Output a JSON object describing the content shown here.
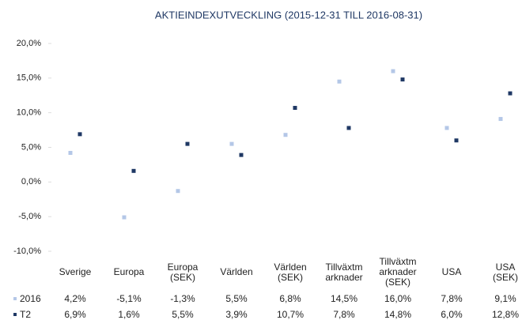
{
  "chart_data": {
    "type": "bar",
    "title": "AKTIEINDEXUTVECKLING  (2015-12-31  TILL  2016-08-31)",
    "categories": [
      "Sverige",
      "Europa",
      "Europa\n(SEK)",
      "Världen",
      "Världen\n(SEK)",
      "Tillväxtm\narknader",
      "Tillväxtm\narknader\n(SEK)",
      "USA",
      "USA\n(SEK)"
    ],
    "series": [
      {
        "name": "2016",
        "color": "#b4c7e7",
        "values": [
          4.2,
          -5.1,
          -1.3,
          5.5,
          6.8,
          14.5,
          16.0,
          7.8,
          9.1
        ],
        "value_labels": [
          "4,2%",
          "-5,1%",
          "-1,3%",
          "5,5%",
          "6,8%",
          "14,5%",
          "16,0%",
          "7,8%",
          "9,1%"
        ]
      },
      {
        "name": "T2",
        "color": "#1f3864",
        "values": [
          6.9,
          1.6,
          5.5,
          3.9,
          10.7,
          7.8,
          14.8,
          6.0,
          12.8
        ],
        "value_labels": [
          "6,9%",
          "1,6%",
          "5,5%",
          "3,9%",
          "10,7%",
          "7,8%",
          "14,8%",
          "6,0%",
          "12,8%"
        ]
      }
    ],
    "ylim": [
      -10,
      20
    ],
    "yticks": [
      {
        "value": -10,
        "label": "-10,0%"
      },
      {
        "value": -5,
        "label": "-5,0%"
      },
      {
        "value": 0,
        "label": "0,0%"
      },
      {
        "value": 5,
        "label": "5,0%"
      },
      {
        "value": 10,
        "label": "10,0%"
      },
      {
        "value": 15,
        "label": "15,0%"
      },
      {
        "value": 20,
        "label": "20,0%"
      }
    ]
  }
}
